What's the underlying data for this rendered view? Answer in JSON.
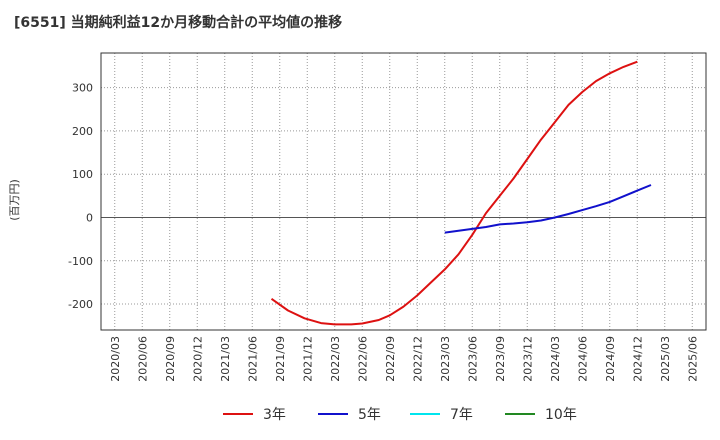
{
  "chart_data": {
    "type": "line",
    "title": "[6551]  当期純利益12か月移動合計の平均値の推移",
    "ylabel": "(百万円)",
    "xlabel": "",
    "ylim": [
      -260,
      380
    ],
    "yticks": [
      300,
      200,
      100,
      0,
      -100,
      -200
    ],
    "ytick_labels": [
      "300",
      "200",
      "100",
      "0",
      "-100",
      "-200"
    ],
    "x_tick_labels": [
      "2020/03",
      "2020/06",
      "2020/09",
      "2020/12",
      "2021/03",
      "2021/06",
      "2021/09",
      "2021/12",
      "2022/03",
      "2022/06",
      "2022/09",
      "2022/12",
      "2023/03",
      "2023/06",
      "2023/09",
      "2023/12",
      "2024/03",
      "2024/06",
      "2024/09",
      "2024/12",
      "2025/03",
      "2025/06"
    ],
    "series": [
      {
        "name": "3年",
        "color": "#dd1111",
        "points": [
          {
            "x": 5.7,
            "y": -188
          },
          {
            "x": 6.3,
            "y": -215
          },
          {
            "x": 6.9,
            "y": -233
          },
          {
            "x": 7.5,
            "y": -244
          },
          {
            "x": 8.0,
            "y": -247
          },
          {
            "x": 8.6,
            "y": -247
          },
          {
            "x": 9.0,
            "y": -245
          },
          {
            "x": 9.6,
            "y": -237
          },
          {
            "x": 10.0,
            "y": -226
          },
          {
            "x": 10.5,
            "y": -206
          },
          {
            "x": 11.0,
            "y": -180
          },
          {
            "x": 11.5,
            "y": -150
          },
          {
            "x": 12.0,
            "y": -120
          },
          {
            "x": 12.5,
            "y": -85
          },
          {
            "x": 13.0,
            "y": -40
          },
          {
            "x": 13.5,
            "y": 10
          },
          {
            "x": 14.0,
            "y": 50
          },
          {
            "x": 14.5,
            "y": 90
          },
          {
            "x": 15.0,
            "y": 135
          },
          {
            "x": 15.5,
            "y": 180
          },
          {
            "x": 16.0,
            "y": 220
          },
          {
            "x": 16.5,
            "y": 260
          },
          {
            "x": 17.0,
            "y": 290
          },
          {
            "x": 17.5,
            "y": 315
          },
          {
            "x": 18.0,
            "y": 333
          },
          {
            "x": 18.5,
            "y": 348
          },
          {
            "x": 19.0,
            "y": 360
          }
        ]
      },
      {
        "name": "5年",
        "color": "#1111cc",
        "points": [
          {
            "x": 12.0,
            "y": -35
          },
          {
            "x": 13.5,
            "y": -22
          },
          {
            "x": 14.0,
            "y": -16
          },
          {
            "x": 14.5,
            "y": -14
          },
          {
            "x": 15.0,
            "y": -11
          },
          {
            "x": 15.5,
            "y": -7
          },
          {
            "x": 16.0,
            "y": 0
          },
          {
            "x": 16.5,
            "y": 8
          },
          {
            "x": 17.0,
            "y": 17
          },
          {
            "x": 17.5,
            "y": 26
          },
          {
            "x": 18.0,
            "y": 36
          },
          {
            "x": 18.5,
            "y": 49
          },
          {
            "x": 19.0,
            "y": 62
          },
          {
            "x": 19.5,
            "y": 75
          }
        ]
      },
      {
        "name": "7年",
        "color": "#00e5ee",
        "points": []
      },
      {
        "name": "10年",
        "color": "#228822",
        "points": []
      }
    ],
    "legend_position": "bottom"
  }
}
